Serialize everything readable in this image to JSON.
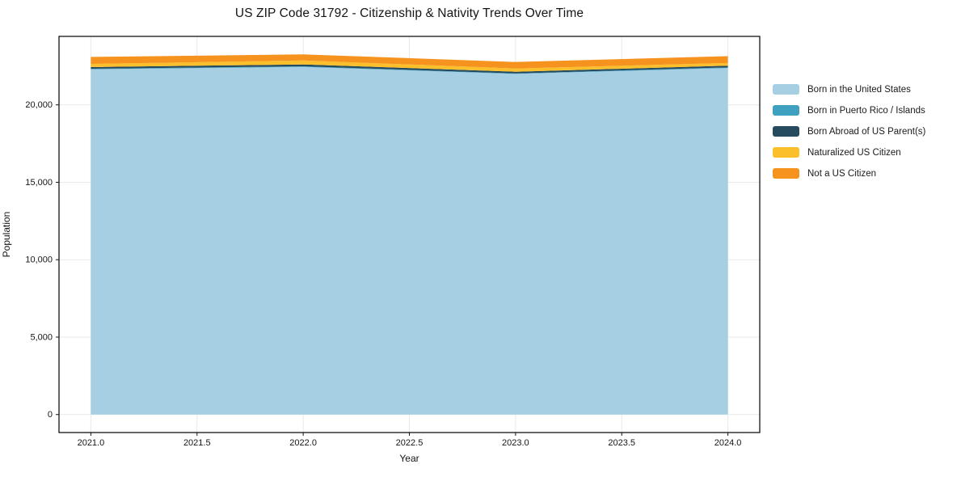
{
  "figure": {
    "background": "#ffffff"
  },
  "chart_data": {
    "type": "area",
    "stacked": true,
    "title": "US ZIP Code 31792 - Citizenship & Nativity Trends Over Time",
    "xlabel": "Year",
    "ylabel": "Population",
    "x": [
      2021,
      2022,
      2023,
      2024
    ],
    "series": [
      {
        "name": "Born in the United States",
        "color": "#A6CFE4",
        "values": [
          22300,
          22450,
          22000,
          22380
        ]
      },
      {
        "name": "Born in Puerto Rico / Islands",
        "color": "#3FA0C0",
        "values": [
          35,
          40,
          30,
          40
        ]
      },
      {
        "name": "Born Abroad of US Parent(s)",
        "color": "#264B5E",
        "values": [
          110,
          120,
          110,
          110
        ]
      },
      {
        "name": "Naturalized US Citizen",
        "color": "#FBBF2B",
        "values": [
          200,
          260,
          210,
          175
        ]
      },
      {
        "name": "Not a US Citizen",
        "color": "#F6921E",
        "values": [
          450,
          390,
          420,
          440
        ]
      }
    ],
    "totals": [
      23095,
      23260,
      22770,
      23145
    ],
    "xlim": [
      2020.85,
      2024.15
    ],
    "ylim": [
      -1163,
      24423
    ],
    "xticks": [
      2021.0,
      2021.5,
      2022.0,
      2022.5,
      2023.0,
      2023.5,
      2024.0
    ],
    "xtick_labels": [
      "2021.0",
      "2021.5",
      "2022.0",
      "2022.5",
      "2023.0",
      "2023.5",
      "2024.0"
    ],
    "yticks": [
      0,
      5000,
      10000,
      15000,
      20000
    ],
    "ytick_labels": [
      "0",
      "5,000",
      "10,000",
      "15,000",
      "20,000"
    ],
    "grid": true,
    "legend_position": "right-outside",
    "axes_style": {
      "frame_color": "#000000",
      "grid_color": "#e9e9e9",
      "tick_color": "#151515"
    }
  }
}
